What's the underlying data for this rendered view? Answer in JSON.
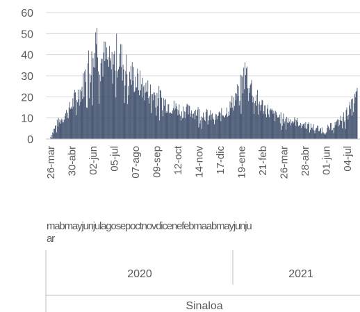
{
  "chart_data": {
    "type": "bar",
    "series_color": "#3a4a68",
    "ylim": [
      0,
      60
    ],
    "y_ticks": [
      "0",
      "10",
      "20",
      "30",
      "40",
      "50",
      "60"
    ],
    "x_date_ticks": [
      "26-mar",
      "30-abr",
      "02-jun",
      "05-jul",
      "07-ago",
      "09-sep",
      "12-oct",
      "14-nov",
      "17-dic",
      "19-ene",
      "21-feb",
      "26-mar",
      "28-abr",
      "01-jun",
      "04-jul"
    ],
    "month_row_line1": "mabmayjunjulagosepoctnovdicenefebmaabmayjunju",
    "month_row_line2": "ar",
    "years": [
      "2020",
      "2021"
    ],
    "group_label": "Sinaloa",
    "x_start": "2020-03-26",
    "y_anchor_values": [
      [
        "2020-03-26",
        0
      ],
      [
        "2020-04-05",
        7
      ],
      [
        "2020-04-15",
        10
      ],
      [
        "2020-04-25",
        14
      ],
      [
        "2020-05-05",
        20
      ],
      [
        "2020-05-15",
        24
      ],
      [
        "2020-05-22",
        35
      ],
      [
        "2020-06-01",
        36
      ],
      [
        "2020-06-04",
        52
      ],
      [
        "2020-06-10",
        37
      ],
      [
        "2020-06-20",
        38
      ],
      [
        "2020-06-28",
        33
      ],
      [
        "2020-07-05",
        40
      ],
      [
        "2020-07-12",
        38
      ],
      [
        "2020-07-20",
        33
      ],
      [
        "2020-07-30",
        30
      ],
      [
        "2020-08-07",
        27
      ],
      [
        "2020-08-17",
        24
      ],
      [
        "2020-08-27",
        22
      ],
      [
        "2020-09-09",
        20
      ],
      [
        "2020-09-20",
        17
      ],
      [
        "2020-10-01",
        15
      ],
      [
        "2020-10-12",
        14
      ],
      [
        "2020-10-25",
        13
      ],
      [
        "2020-11-05",
        13
      ],
      [
        "2020-11-14",
        12
      ],
      [
        "2020-11-25",
        11
      ],
      [
        "2020-12-05",
        10
      ],
      [
        "2020-12-17",
        12
      ],
      [
        "2020-12-27",
        15
      ],
      [
        "2021-01-05",
        20
      ],
      [
        "2021-01-12",
        24
      ],
      [
        "2021-01-19",
        31
      ],
      [
        "2021-01-24",
        30
      ],
      [
        "2021-02-01",
        21
      ],
      [
        "2021-02-10",
        17
      ],
      [
        "2021-02-21",
        14
      ],
      [
        "2021-03-05",
        11
      ],
      [
        "2021-03-15",
        10
      ],
      [
        "2021-03-26",
        9
      ],
      [
        "2021-04-10",
        8
      ],
      [
        "2021-04-28",
        6
      ],
      [
        "2021-05-10",
        5
      ],
      [
        "2021-05-22",
        4
      ],
      [
        "2021-06-01",
        6
      ],
      [
        "2021-06-12",
        8
      ],
      [
        "2021-06-24",
        12
      ],
      [
        "2021-07-04",
        16
      ],
      [
        "2021-07-10",
        21
      ]
    ]
  }
}
